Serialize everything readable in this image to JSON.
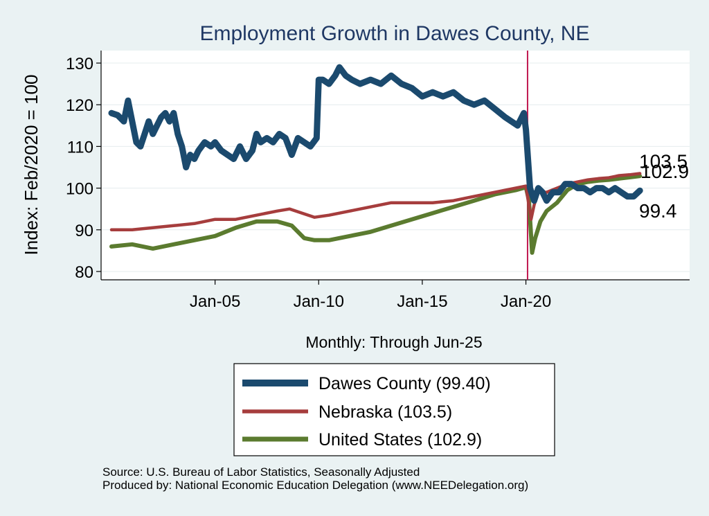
{
  "chart_data": {
    "type": "line",
    "title": "Employment Growth in Dawes  County, NE",
    "ylabel": "Index: Feb/2020 = 100",
    "xlabel": "Monthly: Through Jun-25",
    "ylim": [
      78,
      133
    ],
    "xlim": [
      1999.5,
      2027.9
    ],
    "yticks": [
      80,
      90,
      100,
      110,
      120,
      130
    ],
    "xticks": [
      {
        "label": "Jan-05",
        "value": 2005
      },
      {
        "label": "Jan-10",
        "value": 2010
      },
      {
        "label": "Jan-15",
        "value": 2015
      },
      {
        "label": "Jan-20",
        "value": 2020
      }
    ],
    "reference_line": {
      "x": 2020.08,
      "color": "#c0174f"
    },
    "series": [
      {
        "name": "Dawes  County",
        "legend": "Dawes  County (99.40)",
        "color": "#1b4a6e",
        "end_label": "99.4",
        "x": [
          2000.0,
          2000.3,
          2000.6,
          2000.8,
          2001.0,
          2001.2,
          2001.4,
          2001.6,
          2001.8,
          2002.0,
          2002.2,
          2002.4,
          2002.6,
          2002.8,
          2003.0,
          2003.2,
          2003.4,
          2003.6,
          2003.8,
          2004.0,
          2004.2,
          2004.5,
          2004.8,
          2005.0,
          2005.3,
          2005.6,
          2005.9,
          2006.2,
          2006.5,
          2006.8,
          2007.0,
          2007.2,
          2007.5,
          2007.8,
          2008.1,
          2008.4,
          2008.7,
          2009.0,
          2009.3,
          2009.6,
          2009.9,
          2010.0,
          2010.2,
          2010.5,
          2010.8,
          2011.0,
          2011.3,
          2011.6,
          2012.0,
          2012.5,
          2013.0,
          2013.5,
          2014.0,
          2014.5,
          2015.0,
          2015.5,
          2016.0,
          2016.5,
          2017.0,
          2017.5,
          2018.0,
          2018.5,
          2019.0,
          2019.3,
          2019.6,
          2019.9,
          2020.0,
          2020.2,
          2020.4,
          2020.6,
          2020.8,
          2021.0,
          2021.3,
          2021.6,
          2021.9,
          2022.2,
          2022.5,
          2022.8,
          2023.1,
          2023.4,
          2023.7,
          2024.0,
          2024.3,
          2024.6,
          2024.9,
          2025.2,
          2025.5
        ],
        "values": [
          118,
          117.5,
          116,
          121,
          116,
          111,
          110,
          113,
          116,
          113,
          115,
          117,
          118,
          116,
          118,
          113,
          110,
          105,
          108,
          107,
          109,
          111,
          110,
          111,
          109,
          108,
          107,
          110,
          107,
          109,
          113,
          111,
          112,
          111,
          113,
          112,
          108,
          112,
          111,
          110,
          112,
          126,
          126,
          125,
          127,
          129,
          127,
          126,
          125,
          126,
          125,
          127,
          125,
          124,
          122,
          123,
          122,
          123,
          121,
          120,
          121,
          119,
          117,
          116,
          115,
          118,
          114,
          100,
          97,
          100,
          99,
          97,
          99,
          99,
          101,
          101,
          100,
          100,
          99,
          100,
          100,
          99,
          100,
          99,
          98,
          98,
          99.4
        ]
      },
      {
        "name": "Nebraska",
        "legend": "Nebraska (103.5)",
        "color": "#a63d3d",
        "end_label": "103.5",
        "x": [
          2000.0,
          2001.0,
          2002.0,
          2003.0,
          2004.0,
          2005.0,
          2006.0,
          2007.0,
          2008.0,
          2008.6,
          2009.2,
          2009.8,
          2010.5,
          2011.5,
          2012.5,
          2013.5,
          2014.5,
          2015.5,
          2016.5,
          2017.5,
          2018.5,
          2019.5,
          2020.0,
          2020.25,
          2020.4,
          2020.6,
          2021.0,
          2021.5,
          2022.0,
          2022.5,
          2023.0,
          2023.5,
          2024.0,
          2024.5,
          2025.0,
          2025.5
        ],
        "values": [
          90,
          90,
          90.5,
          91,
          91.5,
          92.5,
          92.5,
          93.5,
          94.5,
          95,
          94,
          93,
          93.5,
          94.5,
          95.5,
          96.5,
          96.5,
          96.5,
          97,
          98,
          99,
          100,
          100.5,
          92.5,
          96,
          99,
          99,
          100,
          101,
          101.5,
          102,
          102.3,
          102.5,
          103,
          103.2,
          103.5
        ]
      },
      {
        "name": "United States",
        "legend": "United States (102.9)",
        "color": "#5b7b2f",
        "end_label": "102.9",
        "x": [
          2000.0,
          2001.0,
          2002.0,
          2003.0,
          2004.0,
          2005.0,
          2006.0,
          2007.0,
          2008.0,
          2008.7,
          2009.3,
          2009.8,
          2010.5,
          2011.5,
          2012.5,
          2013.5,
          2014.5,
          2015.5,
          2016.5,
          2017.5,
          2018.5,
          2019.5,
          2020.0,
          2020.15,
          2020.3,
          2020.45,
          2020.7,
          2021.0,
          2021.5,
          2022.0,
          2022.5,
          2023.0,
          2023.5,
          2024.0,
          2024.5,
          2025.0,
          2025.5
        ],
        "values": [
          86,
          86.5,
          85.5,
          86.5,
          87.5,
          88.5,
          90.5,
          92,
          92,
          91,
          88,
          87.5,
          87.5,
          88.5,
          89.5,
          91,
          92.5,
          94,
          95.5,
          97,
          98.5,
          99.5,
          100.2,
          97,
          84.5,
          88,
          92,
          94.5,
          96.5,
          99.5,
          101,
          101.5,
          101.8,
          102,
          102.3,
          102.6,
          102.9
        ]
      }
    ]
  },
  "source": {
    "line1": "Source: U.S. Bureau of Labor Statistics, Seasonally Adjusted",
    "line2": "Produced by: National Economic Education Delegation (www.NEEDelegation.org)"
  }
}
